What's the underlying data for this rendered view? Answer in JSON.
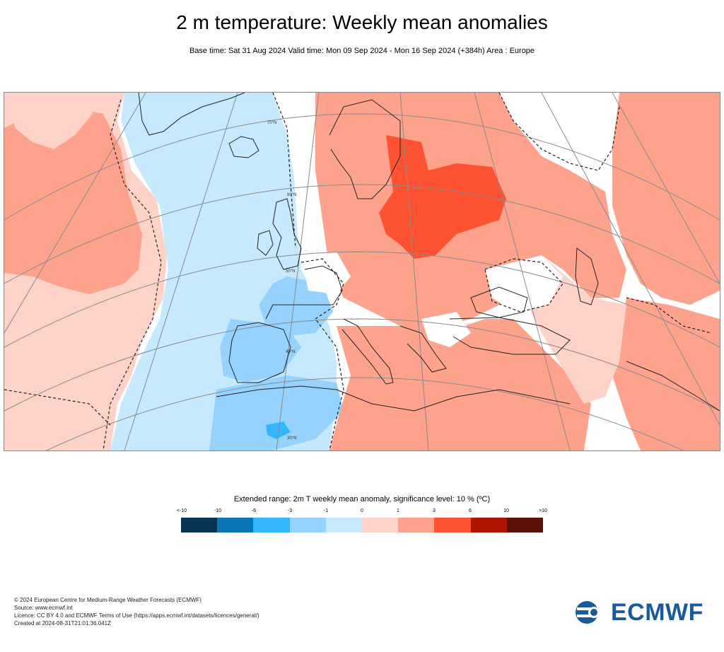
{
  "title": "2 m temperature: Weekly mean anomalies",
  "subtitle": "Base time: Sat 31 Aug 2024 Valid time: Mon 09 Sep 2024 - Mon 16 Sep 2024 (+384h) Area : Europe",
  "map": {
    "latitude_labels": [
      "70°N",
      "60°N",
      "50°N",
      "40°N",
      "30°N"
    ],
    "colors": {
      "strong_warm": "#fe5332",
      "warm": "#fda28d",
      "mild_warm": "#fdd2c8",
      "mild_cool": "#c6e9fe",
      "cool": "#95d2fd",
      "strong_cool": "#34b6fd"
    }
  },
  "legend": {
    "title": "Extended range: 2m T weekly mean anomaly, significance level: 10 % (ºC)",
    "ticks": [
      "<-10",
      "-10",
      "-6",
      "-3",
      "-1",
      "0",
      "1",
      "3",
      "6",
      "10",
      ">10"
    ],
    "colors": [
      "#053552",
      "#0b76b5",
      "#34b6fd",
      "#95d2fd",
      "#c6e9fe",
      "#fdd2c8",
      "#fda28d",
      "#fe5332",
      "#ab1502",
      "#5a1108"
    ]
  },
  "footer": {
    "line1": "© 2024 European Centre for Medium-Range Weather Forecasts (ECMWF)",
    "line2": "Source: www.ecmwf.int",
    "line3": "Licence: CC BY 4.0 and ECMWF Terms of Use (https://apps.ecmwf.int/datasets/licences/general/)",
    "line4": "Created at 2024-08-31T21:01:36.041Z"
  },
  "logo": {
    "text": "ECMWF",
    "icon": "ecmwf-logo-icon"
  }
}
